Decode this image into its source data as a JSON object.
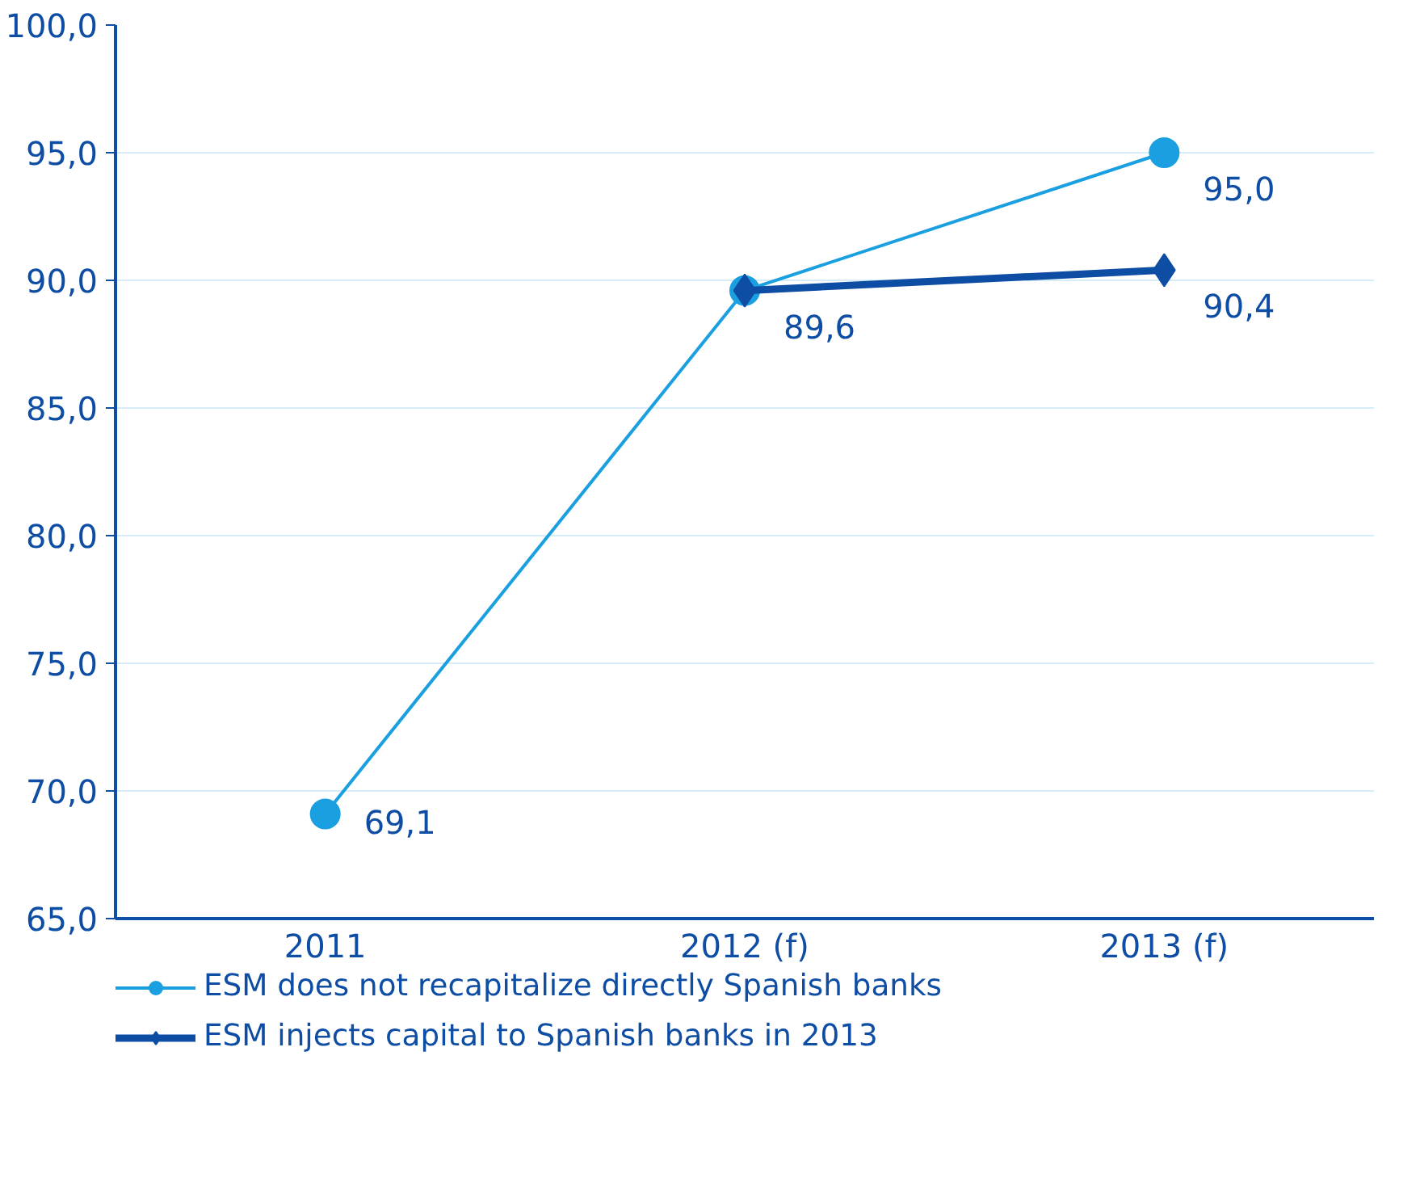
{
  "chart_data": {
    "type": "line",
    "categories": [
      "2011",
      "2012 (f)",
      "2013 (f)"
    ],
    "series": [
      {
        "name": "ESM does not recapitalize directly Spanish banks",
        "color": "#1a9fe0",
        "marker": "circle",
        "values": [
          69.1,
          89.6,
          95.0
        ],
        "value_labels": [
          "69,1",
          "89,6",
          "95,0"
        ]
      },
      {
        "name": "ESM injects capital to Spanish banks in 2013",
        "color": "#0e4da4",
        "marker": "diamond",
        "values": [
          null,
          89.6,
          90.4
        ],
        "value_labels": [
          null,
          null,
          "90,4"
        ]
      }
    ],
    "ylim": [
      65,
      100
    ],
    "yticks": [
      {
        "value": 65,
        "label": "65,0"
      },
      {
        "value": 70,
        "label": "70,0"
      },
      {
        "value": 75,
        "label": "75,0"
      },
      {
        "value": 80,
        "label": "80,0"
      },
      {
        "value": 85,
        "label": "85,0"
      },
      {
        "value": 90,
        "label": "90,0"
      },
      {
        "value": 95,
        "label": "95,0"
      },
      {
        "value": 100,
        "label": "100,0"
      }
    ],
    "grid": "y",
    "legend": "bottom",
    "line_style": "solid"
  }
}
